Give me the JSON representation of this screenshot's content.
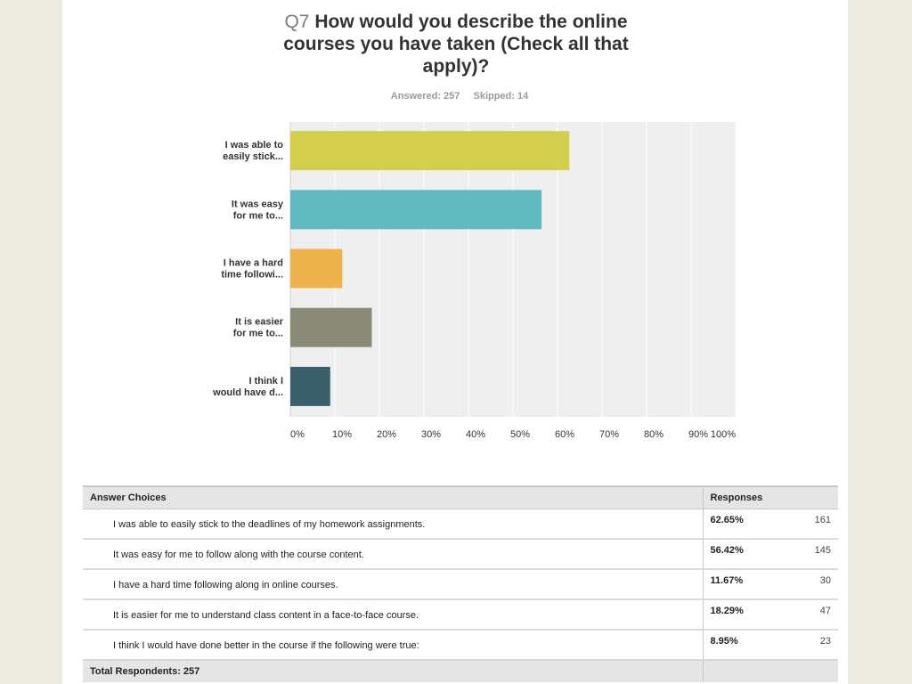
{
  "question": {
    "number": "Q7",
    "title_lines": [
      "How would you describe the online",
      "courses you have taken (Check all that",
      "apply)?"
    ],
    "answered": "Answered: 257",
    "skipped": "Skipped: 14"
  },
  "chart_data": {
    "type": "bar",
    "orientation": "horizontal",
    "categories": [
      [
        "I was able to",
        "easily stick..."
      ],
      [
        "It was easy",
        "for me to..."
      ],
      [
        "I have a hard",
        "time followi..."
      ],
      [
        "It is easier",
        "for me to..."
      ],
      [
        "I think I",
        "would have d..."
      ]
    ],
    "values": [
      62.65,
      56.42,
      11.67,
      18.29,
      8.95
    ],
    "colors": [
      "#d3ce4b",
      "#5fb9be",
      "#efb34c",
      "#8a8a78",
      "#3b5e6b"
    ],
    "xlim": [
      0,
      100
    ],
    "xticks": [
      "0%",
      "10%",
      "20%",
      "30%",
      "40%",
      "50%",
      "60%",
      "70%",
      "80%",
      "90%",
      "100%"
    ],
    "grid": true
  },
  "table": {
    "header_choices": "Answer Choices",
    "header_responses": "Responses",
    "rows": [
      {
        "choice": "I was able to easily stick to the deadlines of my homework assignments.",
        "pct": "62.65%",
        "count": "161"
      },
      {
        "choice": "It was easy for me to follow along with the course content.",
        "pct": "56.42%",
        "count": "145"
      },
      {
        "choice": "I have a hard time following along in online courses.",
        "pct": "11.67%",
        "count": "30"
      },
      {
        "choice": "It is easier for me to understand class content in a face-to-face course.",
        "pct": "18.29%",
        "count": "47"
      },
      {
        "choice": "I think I would have done better in the course if the following were true:",
        "pct": "8.95%",
        "count": "23"
      }
    ],
    "total": "Total Respondents: 257"
  }
}
